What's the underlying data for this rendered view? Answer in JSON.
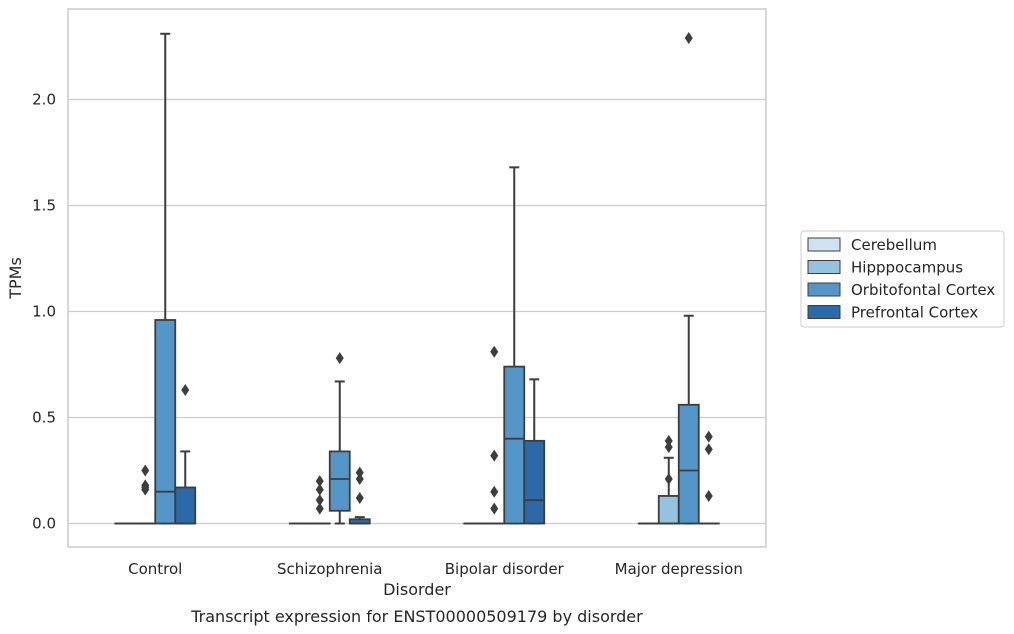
{
  "chart_data": {
    "type": "box",
    "xlabel": "Disorder",
    "ylabel": "TPMs",
    "caption": "Transcript expression for ENST00000509179 by disorder",
    "ylim": [
      -0.11,
      2.44
    ],
    "yticks": [
      0.0,
      0.5,
      1.0,
      1.5,
      2.0
    ],
    "ytick_labels": [
      "0.0",
      "0.5",
      "1.0",
      "1.5",
      "2.0"
    ],
    "grid": "horizontal",
    "legend_position": "right",
    "categories": [
      "Control",
      "Schizophrenia",
      "Bipolar disorder",
      "Major depression"
    ],
    "series": [
      {
        "name": "Cerebellum",
        "color": "#cfe1f2",
        "boxes": [
          {
            "q1": 0.0,
            "median": 0.0,
            "q3": 0.0,
            "whislo": 0.0,
            "whishi": 0.0,
            "fliers": []
          },
          {
            "q1": 0.0,
            "median": 0.0,
            "q3": 0.0,
            "whislo": 0.0,
            "whishi": 0.0,
            "fliers": []
          },
          {
            "q1": 0.0,
            "median": 0.0,
            "q3": 0.0,
            "whislo": 0.0,
            "whishi": 0.0,
            "fliers": []
          },
          {
            "q1": 0.0,
            "median": 0.0,
            "q3": 0.0,
            "whislo": 0.0,
            "whishi": 0.0,
            "fliers": []
          }
        ]
      },
      {
        "name": "Hipppocampus",
        "color": "#93c3df",
        "boxes": [
          {
            "q1": 0.0,
            "median": 0.0,
            "q3": 0.0,
            "whislo": 0.0,
            "whishi": 0.0,
            "fliers": [
              0.16,
              0.18,
              0.17,
              0.25
            ]
          },
          {
            "q1": 0.0,
            "median": 0.0,
            "q3": 0.0,
            "whislo": 0.0,
            "whishi": 0.0,
            "fliers": [
              0.11,
              0.2,
              0.07,
              0.16
            ]
          },
          {
            "q1": 0.0,
            "median": 0.0,
            "q3": 0.0,
            "whislo": 0.0,
            "whishi": 0.0,
            "fliers": [
              0.15,
              0.32,
              0.81,
              0.07
            ]
          },
          {
            "q1": 0.0,
            "median": 0.0,
            "q3": 0.13,
            "whislo": 0.0,
            "whishi": 0.31,
            "fliers": [
              0.21,
              0.39,
              0.36
            ]
          }
        ]
      },
      {
        "name": "Orbitofontal Cortex",
        "color": "#5596c8",
        "boxes": [
          {
            "q1": 0.0,
            "median": 0.15,
            "q3": 0.96,
            "whislo": 0.0,
            "whishi": 2.31,
            "fliers": []
          },
          {
            "q1": 0.06,
            "median": 0.21,
            "q3": 0.34,
            "whislo": 0.0,
            "whishi": 0.67,
            "fliers": [
              0.78
            ]
          },
          {
            "q1": 0.0,
            "median": 0.4,
            "q3": 0.74,
            "whislo": 0.0,
            "whishi": 1.68,
            "fliers": []
          },
          {
            "q1": 0.0,
            "median": 0.25,
            "q3": 0.56,
            "whislo": 0.0,
            "whishi": 0.98,
            "fliers": [
              2.29
            ]
          }
        ]
      },
      {
        "name": "Prefrontal Cortex",
        "color": "#2b69a8",
        "boxes": [
          {
            "q1": 0.0,
            "median": 0.0,
            "q3": 0.17,
            "whislo": 0.0,
            "whishi": 0.34,
            "fliers": [
              0.63
            ]
          },
          {
            "q1": 0.0,
            "median": 0.0,
            "q3": 0.02,
            "whislo": 0.0,
            "whishi": 0.03,
            "fliers": [
              0.24,
              0.21,
              0.12
            ]
          },
          {
            "q1": 0.0,
            "median": 0.11,
            "q3": 0.39,
            "whislo": 0.0,
            "whishi": 0.68,
            "fliers": []
          },
          {
            "q1": 0.0,
            "median": 0.0,
            "q3": 0.0,
            "whislo": 0.0,
            "whishi": 0.0,
            "fliers": [
              0.41,
              0.35,
              0.13
            ]
          }
        ]
      }
    ]
  }
}
